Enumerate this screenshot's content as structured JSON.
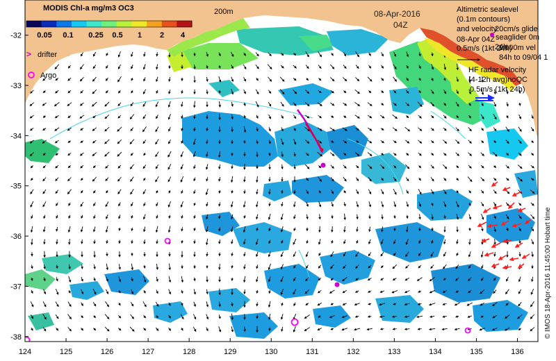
{
  "map": {
    "extent": {
      "lon_min": 124,
      "lon_max": 136.5,
      "lat_min": -38.1,
      "lat_max": -31.3
    },
    "x_ticks": [
      "124",
      "125",
      "126",
      "127",
      "128",
      "129",
      "130",
      "131",
      "132",
      "133",
      "134",
      "135",
      "136"
    ],
    "y_ticks": [
      "-32",
      "-33",
      "-34",
      "-35",
      "-36",
      "-37",
      "-38"
    ],
    "colors": {
      "land": "#f2c28f",
      "ocean": "#ffffff",
      "argo": "#ff00ff",
      "drifter": "#cc00cc",
      "hf_radar": "#ff2020",
      "hf_legend": "#1a2bff",
      "contour": "#46d6e6"
    }
  },
  "colorbar": {
    "title": "MODIS Chl-a mg/m3 OC3",
    "labels": [
      "0.05",
      "0.1",
      "0.25",
      "0.5",
      "1",
      "2",
      "4"
    ],
    "colors": [
      "#08085a",
      "#0a2ab8",
      "#0a78e8",
      "#14c8f0",
      "#3ce6c8",
      "#6ef07a",
      "#b8f03a",
      "#f0e628",
      "#f5a01e",
      "#e8501a",
      "#b41414"
    ]
  },
  "labels": {
    "isobath": "200m",
    "date": "08-Apr-2016",
    "time": "04Z",
    "drifter_marker": ">",
    "drifter": "drifter",
    "argo": "Argo",
    "watermark": "© IMOS 18-Apr-2016 11:45:00 Hobart time"
  },
  "legend_altimetry": {
    "lines": [
      "Altimetric sealevel",
      "(0.1m contours)",
      "and velocity"
    ],
    "overlap_lines": [
      "20cm/s glide",
      "seaglider 0m",
      "08-Apr 04Z",
      "24h",
      "1,000m vel",
      "84h to 09/04 1"
    ],
    "scale": "0.5m/s (1kt 24h)"
  },
  "legend_hf": {
    "lines": [
      "HF radar velocity",
      "(4-12h avg)noQC",
      "0.5m/s (1kt 24h)"
    ]
  }
}
